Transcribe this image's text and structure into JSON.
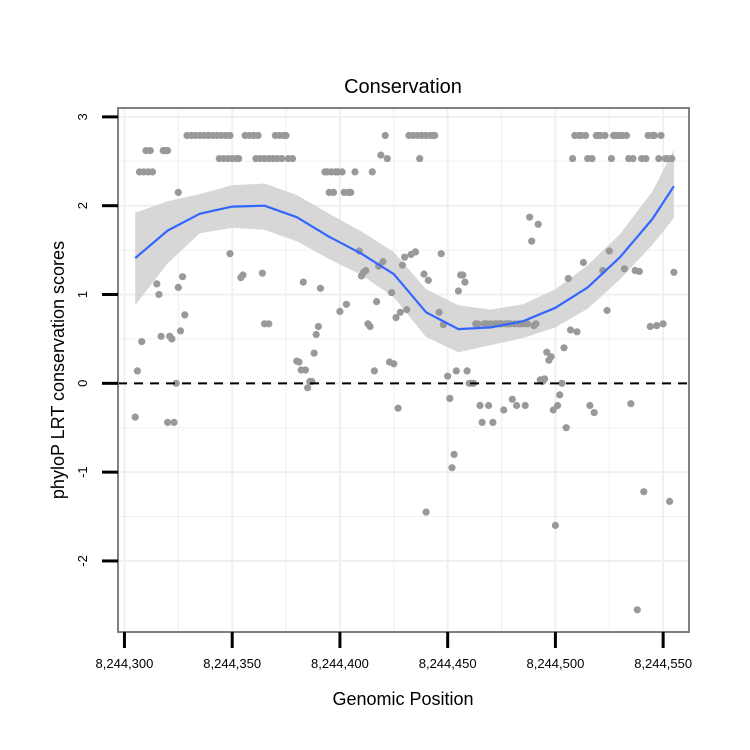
{
  "chart_data": {
    "type": "scatter",
    "title": "Conservation",
    "xlabel": "Genomic Position",
    "ylabel": "phyloP LRT conservation scores",
    "xlim": [
      8244297,
      8244562
    ],
    "ylim": [
      -2.8,
      3.1
    ],
    "x_ticks": [
      8244300,
      8244350,
      8244400,
      8244450,
      8244500,
      8244550
    ],
    "x_tick_labels": [
      "8,244,300",
      "8,244,350",
      "8,244,400",
      "8,244,450",
      "8,244,500",
      "8,244,550"
    ],
    "y_ticks": [
      3,
      2,
      1,
      0,
      -1,
      -2
    ],
    "y_tick_labels": [
      "3",
      "2",
      "1",
      "0",
      "-1",
      "-2"
    ],
    "reference_line": {
      "y": 0,
      "style": "dashed"
    },
    "colors": {
      "points": "#999999",
      "smooth_line": "#3366ff",
      "ribbon": "#d3d3d3",
      "grid": "#f0f0f0",
      "panel_border": "#808080",
      "reference_line": "#000000"
    },
    "points": [
      {
        "x": 8244305,
        "y": -0.38
      },
      {
        "x": 8244306,
        "y": 0.14
      },
      {
        "x": 8244307,
        "y": 2.38
      },
      {
        "x": 8244308,
        "y": 0.47
      },
      {
        "x": 8244309,
        "y": 2.38
      },
      {
        "x": 8244310,
        "y": 2.62
      },
      {
        "x": 8244311,
        "y": 2.38
      },
      {
        "x": 8244312,
        "y": 2.62
      },
      {
        "x": 8244313,
        "y": 2.38
      },
      {
        "x": 8244315,
        "y": 1.12
      },
      {
        "x": 8244316,
        "y": 1.0
      },
      {
        "x": 8244317,
        "y": 0.53
      },
      {
        "x": 8244318,
        "y": 2.62
      },
      {
        "x": 8244319,
        "y": 2.62
      },
      {
        "x": 8244320,
        "y": 2.62
      },
      {
        "x": 8244320,
        "y": -0.44
      },
      {
        "x": 8244321,
        "y": 0.53
      },
      {
        "x": 8244322,
        "y": 0.5
      },
      {
        "x": 8244323,
        "y": -0.44
      },
      {
        "x": 8244324,
        "y": 0.0
      },
      {
        "x": 8244325,
        "y": 2.15
      },
      {
        "x": 8244325,
        "y": 1.08
      },
      {
        "x": 8244326,
        "y": 0.59
      },
      {
        "x": 8244327,
        "y": 1.2
      },
      {
        "x": 8244328,
        "y": 0.77
      },
      {
        "x": 8244329,
        "y": 2.79
      },
      {
        "x": 8244331,
        "y": 2.79
      },
      {
        "x": 8244333,
        "y": 2.79
      },
      {
        "x": 8244335,
        "y": 2.79
      },
      {
        "x": 8244337,
        "y": 2.79
      },
      {
        "x": 8244339,
        "y": 2.79
      },
      {
        "x": 8244341,
        "y": 2.79
      },
      {
        "x": 8244343,
        "y": 2.79
      },
      {
        "x": 8244345,
        "y": 2.79
      },
      {
        "x": 8244347,
        "y": 2.79
      },
      {
        "x": 8244349,
        "y": 2.79
      },
      {
        "x": 8244344,
        "y": 2.53
      },
      {
        "x": 8244346,
        "y": 2.53
      },
      {
        "x": 8244348,
        "y": 2.53
      },
      {
        "x": 8244350,
        "y": 2.53
      },
      {
        "x": 8244349,
        "y": 1.46
      },
      {
        "x": 8244352,
        "y": 2.53
      },
      {
        "x": 8244353,
        "y": 2.53
      },
      {
        "x": 8244354,
        "y": 1.19
      },
      {
        "x": 8244355,
        "y": 1.22
      },
      {
        "x": 8244356,
        "y": 2.79
      },
      {
        "x": 8244358,
        "y": 2.79
      },
      {
        "x": 8244360,
        "y": 2.79
      },
      {
        "x": 8244362,
        "y": 2.79
      },
      {
        "x": 8244361,
        "y": 2.53
      },
      {
        "x": 8244363,
        "y": 2.53
      },
      {
        "x": 8244364,
        "y": 1.24
      },
      {
        "x": 8244365,
        "y": 2.53
      },
      {
        "x": 8244365,
        "y": 0.67
      },
      {
        "x": 8244367,
        "y": 2.53
      },
      {
        "x": 8244367,
        "y": 0.67
      },
      {
        "x": 8244369,
        "y": 2.53
      },
      {
        "x": 8244370,
        "y": 2.79
      },
      {
        "x": 8244371,
        "y": 2.53
      },
      {
        "x": 8244372,
        "y": 2.79
      },
      {
        "x": 8244373,
        "y": 2.53
      },
      {
        "x": 8244374,
        "y": 2.79
      },
      {
        "x": 8244375,
        "y": 2.79
      },
      {
        "x": 8244376,
        "y": 2.53
      },
      {
        "x": 8244378,
        "y": 2.53
      },
      {
        "x": 8244380,
        "y": 0.25
      },
      {
        "x": 8244381,
        "y": 0.24
      },
      {
        "x": 8244382,
        "y": 0.15
      },
      {
        "x": 8244383,
        "y": 1.14
      },
      {
        "x": 8244384,
        "y": 0.15
      },
      {
        "x": 8244385,
        "y": -0.05
      },
      {
        "x": 8244386,
        "y": 0.02
      },
      {
        "x": 8244387,
        "y": 0.02
      },
      {
        "x": 8244388,
        "y": 0.34
      },
      {
        "x": 8244389,
        "y": 0.55
      },
      {
        "x": 8244390,
        "y": 0.64
      },
      {
        "x": 8244391,
        "y": 1.07
      },
      {
        "x": 8244393,
        "y": 2.38
      },
      {
        "x": 8244394,
        "y": 2.38
      },
      {
        "x": 8244395,
        "y": 2.15
      },
      {
        "x": 8244396,
        "y": 2.38
      },
      {
        "x": 8244397,
        "y": 2.15
      },
      {
        "x": 8244398,
        "y": 2.38
      },
      {
        "x": 8244399,
        "y": 2.38
      },
      {
        "x": 8244400,
        "y": 0.81
      },
      {
        "x": 8244401,
        "y": 2.38
      },
      {
        "x": 8244402,
        "y": 2.15
      },
      {
        "x": 8244403,
        "y": 0.89
      },
      {
        "x": 8244404,
        "y": 2.15
      },
      {
        "x": 8244405,
        "y": 2.15
      },
      {
        "x": 8244407,
        "y": 2.38
      },
      {
        "x": 8244409,
        "y": 1.49
      },
      {
        "x": 8244410,
        "y": 1.21
      },
      {
        "x": 8244411,
        "y": 1.25
      },
      {
        "x": 8244412,
        "y": 1.27
      },
      {
        "x": 8244413,
        "y": 0.67
      },
      {
        "x": 8244414,
        "y": 0.64
      },
      {
        "x": 8244415,
        "y": 2.38
      },
      {
        "x": 8244416,
        "y": 0.14
      },
      {
        "x": 8244417,
        "y": 0.92
      },
      {
        "x": 8244418,
        "y": 1.32
      },
      {
        "x": 8244419,
        "y": 2.57
      },
      {
        "x": 8244420,
        "y": 1.37
      },
      {
        "x": 8244421,
        "y": 2.79
      },
      {
        "x": 8244422,
        "y": 2.53
      },
      {
        "x": 8244423,
        "y": 0.24
      },
      {
        "x": 8244424,
        "y": 1.02
      },
      {
        "x": 8244425,
        "y": 0.22
      },
      {
        "x": 8244426,
        "y": 0.74
      },
      {
        "x": 8244427,
        "y": -0.28
      },
      {
        "x": 8244428,
        "y": 0.8
      },
      {
        "x": 8244429,
        "y": 1.33
      },
      {
        "x": 8244430,
        "y": 1.42
      },
      {
        "x": 8244431,
        "y": 0.83
      },
      {
        "x": 8244432,
        "y": 2.79
      },
      {
        "x": 8244433,
        "y": 1.45
      },
      {
        "x": 8244434,
        "y": 2.79
      },
      {
        "x": 8244435,
        "y": 1.48
      },
      {
        "x": 8244436,
        "y": 2.79
      },
      {
        "x": 8244437,
        "y": 2.53
      },
      {
        "x": 8244438,
        "y": 2.79
      },
      {
        "x": 8244439,
        "y": 1.23
      },
      {
        "x": 8244440,
        "y": 2.79
      },
      {
        "x": 8244440,
        "y": -1.45
      },
      {
        "x": 8244441,
        "y": 1.16
      },
      {
        "x": 8244442,
        "y": 2.79
      },
      {
        "x": 8244443,
        "y": 2.79
      },
      {
        "x": 8244444,
        "y": 2.79
      },
      {
        "x": 8244446,
        "y": 0.8
      },
      {
        "x": 8244447,
        "y": 1.46
      },
      {
        "x": 8244448,
        "y": 0.66
      },
      {
        "x": 8244450,
        "y": 0.08
      },
      {
        "x": 8244451,
        "y": -0.17
      },
      {
        "x": 8244452,
        "y": -0.95
      },
      {
        "x": 8244453,
        "y": -0.8
      },
      {
        "x": 8244454,
        "y": 0.14
      },
      {
        "x": 8244455,
        "y": 1.04
      },
      {
        "x": 8244456,
        "y": 1.22
      },
      {
        "x": 8244457,
        "y": 1.22
      },
      {
        "x": 8244458,
        "y": 1.14
      },
      {
        "x": 8244459,
        "y": 0.14
      },
      {
        "x": 8244460,
        "y": 0.0
      },
      {
        "x": 8244461,
        "y": 0.0
      },
      {
        "x": 8244462,
        "y": 0.0
      },
      {
        "x": 8244463,
        "y": 0.67
      },
      {
        "x": 8244464,
        "y": 0.67
      },
      {
        "x": 8244465,
        "y": -0.25
      },
      {
        "x": 8244466,
        "y": -0.44
      },
      {
        "x": 8244467,
        "y": 0.67
      },
      {
        "x": 8244468,
        "y": 0.67
      },
      {
        "x": 8244469,
        "y": -0.25
      },
      {
        "x": 8244470,
        "y": 0.67
      },
      {
        "x": 8244471,
        "y": -0.44
      },
      {
        "x": 8244472,
        "y": 0.67
      },
      {
        "x": 8244473,
        "y": 0.67
      },
      {
        "x": 8244474,
        "y": 0.67
      },
      {
        "x": 8244475,
        "y": 0.67
      },
      {
        "x": 8244476,
        "y": -0.3
      },
      {
        "x": 8244477,
        "y": 0.67
      },
      {
        "x": 8244478,
        "y": 0.67
      },
      {
        "x": 8244479,
        "y": 0.67
      },
      {
        "x": 8244480,
        "y": -0.18
      },
      {
        "x": 8244481,
        "y": 0.67
      },
      {
        "x": 8244482,
        "y": -0.25
      },
      {
        "x": 8244483,
        "y": 0.67
      },
      {
        "x": 8244484,
        "y": 0.67
      },
      {
        "x": 8244485,
        "y": 0.67
      },
      {
        "x": 8244486,
        "y": -0.25
      },
      {
        "x": 8244487,
        "y": 0.67
      },
      {
        "x": 8244488,
        "y": 1.87
      },
      {
        "x": 8244489,
        "y": 1.6
      },
      {
        "x": 8244490,
        "y": 0.65
      },
      {
        "x": 8244491,
        "y": 0.67
      },
      {
        "x": 8244492,
        "y": 1.79
      },
      {
        "x": 8244493,
        "y": 0.04
      },
      {
        "x": 8244494,
        "y": 0.02
      },
      {
        "x": 8244495,
        "y": 0.05
      },
      {
        "x": 8244496,
        "y": 0.35
      },
      {
        "x": 8244497,
        "y": 0.26
      },
      {
        "x": 8244498,
        "y": 0.3
      },
      {
        "x": 8244499,
        "y": -0.3
      },
      {
        "x": 8244500,
        "y": -1.6
      },
      {
        "x": 8244501,
        "y": -0.25
      },
      {
        "x": 8244502,
        "y": -0.13
      },
      {
        "x": 8244503,
        "y": 0.0
      },
      {
        "x": 8244504,
        "y": 0.4
      },
      {
        "x": 8244505,
        "y": -0.5
      },
      {
        "x": 8244506,
        "y": 1.18
      },
      {
        "x": 8244507,
        "y": 0.6
      },
      {
        "x": 8244508,
        "y": 2.53
      },
      {
        "x": 8244509,
        "y": 2.79
      },
      {
        "x": 8244510,
        "y": 0.58
      },
      {
        "x": 8244511,
        "y": 2.79
      },
      {
        "x": 8244512,
        "y": 2.79
      },
      {
        "x": 8244513,
        "y": 1.36
      },
      {
        "x": 8244514,
        "y": 2.79
      },
      {
        "x": 8244515,
        "y": 2.53
      },
      {
        "x": 8244516,
        "y": -0.25
      },
      {
        "x": 8244517,
        "y": 2.53
      },
      {
        "x": 8244518,
        "y": -0.33
      },
      {
        "x": 8244519,
        "y": 2.79
      },
      {
        "x": 8244520,
        "y": 2.79
      },
      {
        "x": 8244521,
        "y": 2.79
      },
      {
        "x": 8244522,
        "y": 1.27
      },
      {
        "x": 8244523,
        "y": 2.79
      },
      {
        "x": 8244524,
        "y": 0.82
      },
      {
        "x": 8244525,
        "y": 1.49
      },
      {
        "x": 8244526,
        "y": 2.53
      },
      {
        "x": 8244527,
        "y": 2.79
      },
      {
        "x": 8244528,
        "y": 2.79
      },
      {
        "x": 8244529,
        "y": 2.79
      },
      {
        "x": 8244530,
        "y": 2.79
      },
      {
        "x": 8244531,
        "y": 2.79
      },
      {
        "x": 8244532,
        "y": 1.29
      },
      {
        "x": 8244533,
        "y": 2.79
      },
      {
        "x": 8244534,
        "y": 2.53
      },
      {
        "x": 8244535,
        "y": -0.23
      },
      {
        "x": 8244536,
        "y": 2.53
      },
      {
        "x": 8244537,
        "y": 1.27
      },
      {
        "x": 8244538,
        "y": -2.55
      },
      {
        "x": 8244539,
        "y": 1.26
      },
      {
        "x": 8244540,
        "y": 2.53
      },
      {
        "x": 8244541,
        "y": -1.22
      },
      {
        "x": 8244542,
        "y": 2.53
      },
      {
        "x": 8244543,
        "y": 2.79
      },
      {
        "x": 8244544,
        "y": 0.64
      },
      {
        "x": 8244545,
        "y": 2.79
      },
      {
        "x": 8244546,
        "y": 2.79
      },
      {
        "x": 8244547,
        "y": 0.65
      },
      {
        "x": 8244548,
        "y": 2.53
      },
      {
        "x": 8244549,
        "y": 2.79
      },
      {
        "x": 8244550,
        "y": 0.67
      },
      {
        "x": 8244551,
        "y": 2.53
      },
      {
        "x": 8244552,
        "y": 2.53
      },
      {
        "x": 8244553,
        "y": -1.33
      },
      {
        "x": 8244554,
        "y": 2.53
      },
      {
        "x": 8244555,
        "y": 1.25
      }
    ],
    "smooth": {
      "x": [
        8244305,
        8244320,
        8244335,
        8244350,
        8244365,
        8244380,
        8244395,
        8244410,
        8244425,
        8244440,
        8244455,
        8244470,
        8244485,
        8244500,
        8244515,
        8244530,
        8244545,
        8244555
      ],
      "y": [
        1.41,
        1.72,
        1.91,
        1.99,
        2.0,
        1.87,
        1.65,
        1.46,
        1.23,
        0.8,
        0.61,
        0.63,
        0.7,
        0.85,
        1.08,
        1.42,
        1.85,
        2.22
      ],
      "lower": [
        0.88,
        1.35,
        1.69,
        1.75,
        1.73,
        1.6,
        1.4,
        1.22,
        0.97,
        0.52,
        0.35,
        0.43,
        0.51,
        0.63,
        0.84,
        1.17,
        1.56,
        1.86
      ],
      "upper": [
        1.92,
        2.05,
        2.13,
        2.23,
        2.25,
        2.12,
        1.91,
        1.71,
        1.48,
        1.06,
        0.88,
        0.83,
        0.89,
        1.06,
        1.33,
        1.68,
        2.16,
        2.63
      ]
    }
  }
}
